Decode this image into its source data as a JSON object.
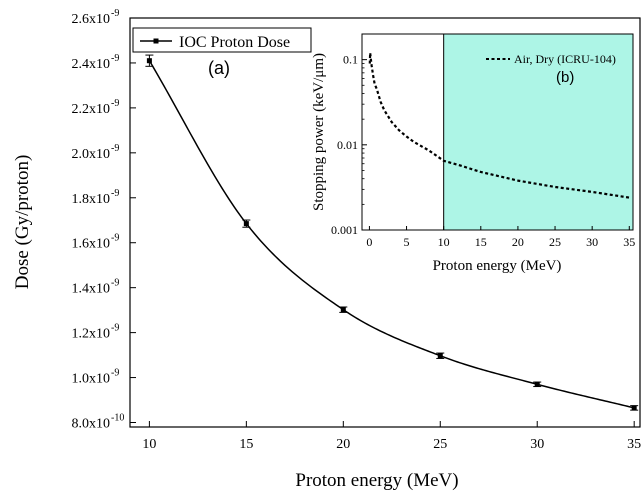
{
  "chart_data": [
    {
      "type": "line",
      "panel_label": "(a)",
      "xlabel": "Proton energy (MeV)",
      "ylabel": "Dose (Gy/proton)",
      "xlim": [
        9,
        35.3
      ],
      "ylim": [
        7.8e-10,
        2.6e-09
      ],
      "x_ticks": [
        10,
        15,
        20,
        25,
        30,
        35
      ],
      "x_tick_labels": [
        "10",
        "15",
        "20",
        "25",
        "30",
        "35"
      ],
      "y_ticks": [
        8e-10,
        1e-09,
        1.2e-09,
        1.4e-09,
        1.6e-09,
        1.8e-09,
        2e-09,
        2.2e-09,
        2.4e-09,
        2.6e-09
      ],
      "y_tick_labels": [
        {
          "mantissa": "8.0x10",
          "exponent": "-10"
        },
        {
          "mantissa": "1.0x10",
          "exponent": "-9"
        },
        {
          "mantissa": "1.2x10",
          "exponent": "-9"
        },
        {
          "mantissa": "1.4x10",
          "exponent": "-9"
        },
        {
          "mantissa": "1.6x10",
          "exponent": "-9"
        },
        {
          "mantissa": "1.8x10",
          "exponent": "-9"
        },
        {
          "mantissa": "2.0x10",
          "exponent": "-9"
        },
        {
          "mantissa": "2.2x10",
          "exponent": "-9"
        },
        {
          "mantissa": "2.4x10",
          "exponent": "-9"
        },
        {
          "mantissa": "2.6x10",
          "exponent": "-9"
        }
      ],
      "legend_position": "top-left",
      "series": [
        {
          "name": "IOC Proton Dose",
          "color": "#000000",
          "marker": "square",
          "x": [
            10,
            15,
            20,
            25,
            30,
            35
          ],
          "y": [
            2.41e-09,
            1.685e-09,
            1.302e-09,
            1.097e-09,
            9.7e-10,
            8.65e-10
          ],
          "error": [
            2.5e-11,
            1.6e-11,
            1.2e-11,
            1.2e-11,
            1e-11,
            1e-11
          ]
        }
      ]
    },
    {
      "type": "line",
      "panel_label": "(b)",
      "xlabel": "Proton energy (MeV)",
      "ylabel": "Stopping power (keV/μm)",
      "xlim": [
        -1,
        35.5
      ],
      "ylim": [
        0.001,
        0.2
      ],
      "y_scale": "log",
      "x_ticks": [
        0,
        5,
        10,
        15,
        20,
        25,
        30,
        35
      ],
      "x_tick_labels": [
        "0",
        "5",
        "10",
        "15",
        "20",
        "25",
        "30",
        "35"
      ],
      "y_ticks": [
        0.001,
        0.01,
        0.1
      ],
      "y_tick_labels": [
        "0.001",
        "0.01",
        "0.1"
      ],
      "legend_position": "top-right",
      "shaded_region": {
        "x_from": 10,
        "x_to": 35.5,
        "color": "#adf5e6"
      },
      "series": [
        {
          "name": "Air, Dry (ICRU-104)",
          "color": "#000000",
          "style": "dotted",
          "x": [
            0.05,
            0.1,
            0.2,
            0.3,
            0.5,
            0.7,
            1,
            1.5,
            2,
            3,
            4,
            5,
            6,
            8,
            10,
            12,
            15,
            20,
            25,
            30,
            35
          ],
          "y": [
            0.09,
            0.12,
            0.1,
            0.085,
            0.065,
            0.052,
            0.045,
            0.032,
            0.0255,
            0.0185,
            0.0148,
            0.0125,
            0.0108,
            0.0086,
            0.0065,
            0.0058,
            0.0048,
            0.0038,
            0.0032,
            0.0028,
            0.0024
          ]
        }
      ]
    }
  ]
}
